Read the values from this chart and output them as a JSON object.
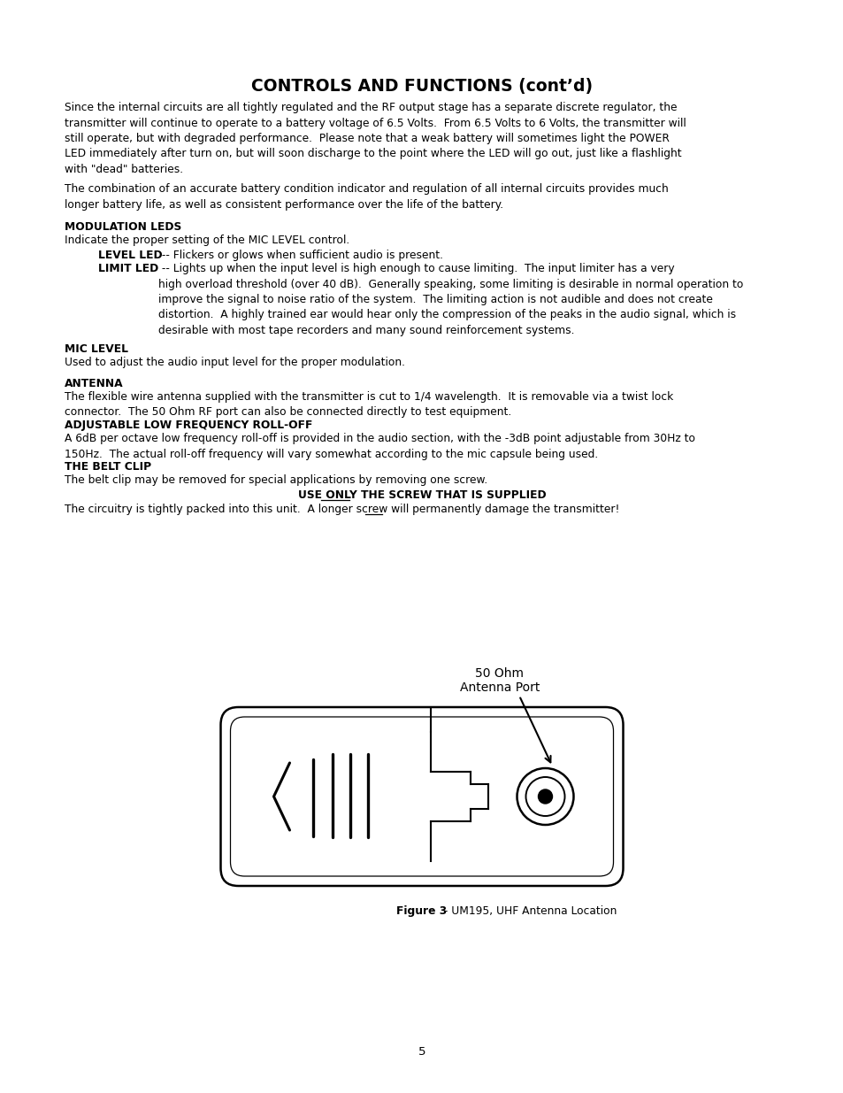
{
  "title": "CONTROLS AND FUNCTIONS (cont’d)",
  "background_color": "#ffffff",
  "text_color": "#000000",
  "page_number": "5",
  "p1": "Since the internal circuits are all tightly regulated and the RF output stage has a separate discrete regulator, the\ntransmitter will continue to operate to a battery voltage of 6.5 Volts.  From 6.5 Volts to 6 Volts, the transmitter will\nstill operate, but with degraded performance.  Please note that a weak battery will sometimes light the POWER\nLED immediately after turn on, but will soon discharge to the point where the LED will go out, just like a flashlight\nwith \"dead\" batteries.",
  "p2": "The combination of an accurate battery condition indicator and regulation of all internal circuits provides much\nlonger battery life, as well as consistent performance over the life of the battery.",
  "h_modulation": "MODULATION LEDS",
  "p_modulation": "Indicate the proper setting of the MIC LEVEL control.",
  "level_led_bold": "LEVEL LED",
  "level_led_normal": " -- Flickers or glows when sufficient audio is present.",
  "limit_led_bold": "LIMIT LED",
  "limit_led_normal": " -- Lights up when the input level is high enough to cause limiting.  The input limiter has a very\nhigh overload threshold (over 40 dB).  Generally speaking, some limiting is desirable in normal operation to\nimprove the signal to noise ratio of the system.  The limiting action is not audible and does not create\ndistortion.  A highly trained ear would hear only the compression of the peaks in the audio signal, which is\ndesirable with most tape recorders and many sound reinforcement systems.",
  "h_mic": "MIC LEVEL",
  "p_mic": "Used to adjust the audio input level for the proper modulation.",
  "h_antenna": "ANTENNA",
  "p_antenna": "The flexible wire antenna supplied with the transmitter is cut to 1/4 wavelength.  It is removable via a twist lock\nconnector.  The 50 Ohm RF port can also be connected directly to test equipment.",
  "h_rolloff": "ADJUSTABLE LOW FREQUENCY ROLL-OFF",
  "p_rolloff": "A 6dB per octave low frequency roll-off is provided in the audio section, with the -3dB point adjustable from 30Hz to\n150Hz.  The actual roll-off frequency will vary somewhat according to the mic capsule being used.",
  "h_beltclip": "THE BELT CLIP",
  "p_beltclip": "The belt clip may be removed for special applications by removing one screw.",
  "p_screw_bold": "USE ONLY THE SCREW THAT IS SUPPLIED",
  "p_circuitry_before": "The circuitry is tightly packed into this unit.  A longer screw ",
  "p_circuitry_will": "will",
  "p_circuitry_after": " permanently damage the transmitter!",
  "label_50ohm": "50 Ohm",
  "label_antenna_port": "Antenna Port",
  "fig_caption_bold": "Figure 3",
  "fig_caption_normal": " - UM195, UHF Antenna Location"
}
